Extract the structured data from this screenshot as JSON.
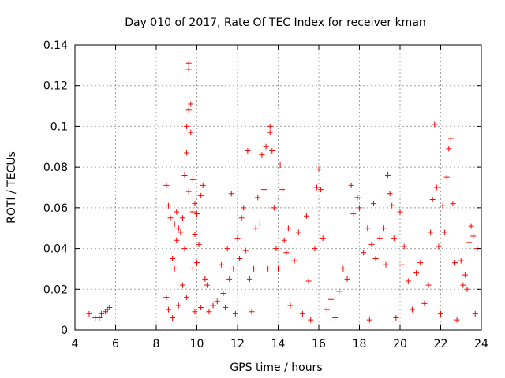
{
  "chart_data": {
    "type": "scatter",
    "title": "Day 010 of 2017, Rate Of TEC Index for receiver kman",
    "xlabel": "GPS time / hours",
    "ylabel": "ROTI / TECUs",
    "xlim": [
      4,
      24
    ],
    "ylim": [
      0,
      0.14
    ],
    "x_ticks": [
      "4",
      "6",
      "8",
      "10",
      "12",
      "14",
      "16",
      "18",
      "20",
      "22",
      "24"
    ],
    "y_ticks": [
      "0",
      "0.02",
      "0.04",
      "0.06",
      "0.08",
      "0.1",
      "0.12",
      "0.14"
    ],
    "grid": true,
    "marker": "+",
    "colors": {
      "marker": "#ff0000",
      "grid": "#a0a0a0",
      "axes": "#000000"
    },
    "series": [
      {
        "points": [
          [
            4.7,
            0.008
          ],
          [
            5.0,
            0.006
          ],
          [
            5.2,
            0.006
          ],
          [
            5.3,
            0.008
          ],
          [
            5.5,
            0.009
          ],
          [
            5.6,
            0.01
          ],
          [
            5.7,
            0.011
          ],
          [
            8.5,
            0.071
          ],
          [
            8.5,
            0.016
          ],
          [
            8.6,
            0.061
          ],
          [
            8.6,
            0.01
          ],
          [
            8.7,
            0.055
          ],
          [
            8.8,
            0.035
          ],
          [
            8.8,
            0.006
          ],
          [
            8.9,
            0.052
          ],
          [
            8.9,
            0.03
          ],
          [
            9.0,
            0.058
          ],
          [
            9.0,
            0.044
          ],
          [
            9.1,
            0.05
          ],
          [
            9.1,
            0.012
          ],
          [
            9.2,
            0.048
          ],
          [
            9.3,
            0.055
          ],
          [
            9.3,
            0.022
          ],
          [
            9.4,
            0.04
          ],
          [
            9.4,
            0.076
          ],
          [
            9.5,
            0.1
          ],
          [
            9.5,
            0.087
          ],
          [
            9.5,
            0.016
          ],
          [
            9.6,
            0.131
          ],
          [
            9.6,
            0.128
          ],
          [
            9.6,
            0.108
          ],
          [
            9.6,
            0.068
          ],
          [
            9.7,
            0.111
          ],
          [
            9.7,
            0.097
          ],
          [
            9.8,
            0.074
          ],
          [
            9.8,
            0.058
          ],
          [
            9.8,
            0.03
          ],
          [
            9.9,
            0.062
          ],
          [
            9.9,
            0.047
          ],
          [
            9.9,
            0.009
          ],
          [
            10.0,
            0.057
          ],
          [
            10.0,
            0.033
          ],
          [
            10.1,
            0.042
          ],
          [
            10.2,
            0.066
          ],
          [
            10.2,
            0.011
          ],
          [
            10.3,
            0.071
          ],
          [
            10.4,
            0.025
          ],
          [
            10.5,
            0.022
          ],
          [
            10.6,
            0.009
          ],
          [
            10.8,
            0.012
          ],
          [
            11.0,
            0.014
          ],
          [
            11.2,
            0.032
          ],
          [
            11.3,
            0.018
          ],
          [
            11.4,
            0.011
          ],
          [
            11.5,
            0.04
          ],
          [
            11.6,
            0.025
          ],
          [
            11.7,
            0.067
          ],
          [
            11.8,
            0.03
          ],
          [
            11.9,
            0.008
          ],
          [
            12.0,
            0.045
          ],
          [
            12.1,
            0.035
          ],
          [
            12.2,
            0.055
          ],
          [
            12.3,
            0.06
          ],
          [
            12.4,
            0.039
          ],
          [
            12.5,
            0.088
          ],
          [
            12.6,
            0.025
          ],
          [
            12.7,
            0.009
          ],
          [
            12.8,
            0.03
          ],
          [
            12.9,
            0.05
          ],
          [
            13.0,
            0.065
          ],
          [
            13.1,
            0.052
          ],
          [
            13.2,
            0.086
          ],
          [
            13.3,
            0.069
          ],
          [
            13.4,
            0.09
          ],
          [
            13.5,
            0.03
          ],
          [
            13.6,
            0.1
          ],
          [
            13.6,
            0.097
          ],
          [
            13.7,
            0.088
          ],
          [
            13.8,
            0.06
          ],
          [
            13.9,
            0.04
          ],
          [
            14.0,
            0.03
          ],
          [
            14.1,
            0.081
          ],
          [
            14.2,
            0.069
          ],
          [
            14.3,
            0.044
          ],
          [
            14.4,
            0.038
          ],
          [
            14.5,
            0.05
          ],
          [
            14.6,
            0.012
          ],
          [
            14.8,
            0.034
          ],
          [
            15.0,
            0.048
          ],
          [
            15.2,
            0.008
          ],
          [
            15.4,
            0.056
          ],
          [
            15.5,
            0.024
          ],
          [
            15.6,
            0.005
          ],
          [
            15.8,
            0.04
          ],
          [
            15.9,
            0.07
          ],
          [
            16.0,
            0.079
          ],
          [
            16.1,
            0.069
          ],
          [
            16.2,
            0.045
          ],
          [
            16.4,
            0.01
          ],
          [
            16.6,
            0.015
          ],
          [
            16.8,
            0.006
          ],
          [
            17.0,
            0.019
          ],
          [
            17.2,
            0.03
          ],
          [
            17.4,
            0.025
          ],
          [
            17.6,
            0.071
          ],
          [
            17.7,
            0.057
          ],
          [
            17.9,
            0.065
          ],
          [
            18.0,
            0.06
          ],
          [
            18.2,
            0.038
          ],
          [
            18.4,
            0.05
          ],
          [
            18.5,
            0.005
          ],
          [
            18.6,
            0.042
          ],
          [
            18.7,
            0.062
          ],
          [
            18.8,
            0.035
          ],
          [
            19.0,
            0.045
          ],
          [
            19.2,
            0.05
          ],
          [
            19.3,
            0.032
          ],
          [
            19.4,
            0.076
          ],
          [
            19.5,
            0.067
          ],
          [
            19.6,
            0.061
          ],
          [
            19.7,
            0.045
          ],
          [
            19.8,
            0.006
          ],
          [
            20.0,
            0.058
          ],
          [
            20.1,
            0.032
          ],
          [
            20.2,
            0.041
          ],
          [
            20.4,
            0.024
          ],
          [
            20.6,
            0.01
          ],
          [
            20.8,
            0.028
          ],
          [
            21.0,
            0.033
          ],
          [
            21.2,
            0.013
          ],
          [
            21.4,
            0.022
          ],
          [
            21.5,
            0.048
          ],
          [
            21.6,
            0.064
          ],
          [
            21.7,
            0.101
          ],
          [
            21.8,
            0.07
          ],
          [
            21.9,
            0.041
          ],
          [
            22.0,
            0.008
          ],
          [
            22.1,
            0.061
          ],
          [
            22.2,
            0.048
          ],
          [
            22.3,
            0.075
          ],
          [
            22.4,
            0.089
          ],
          [
            22.5,
            0.094
          ],
          [
            22.6,
            0.062
          ],
          [
            22.7,
            0.033
          ],
          [
            22.8,
            0.005
          ],
          [
            23.0,
            0.034
          ],
          [
            23.1,
            0.022
          ],
          [
            23.2,
            0.027
          ],
          [
            23.3,
            0.02
          ],
          [
            23.4,
            0.043
          ],
          [
            23.5,
            0.051
          ],
          [
            23.6,
            0.046
          ],
          [
            23.7,
            0.008
          ],
          [
            23.8,
            0.04
          ]
        ]
      }
    ]
  }
}
